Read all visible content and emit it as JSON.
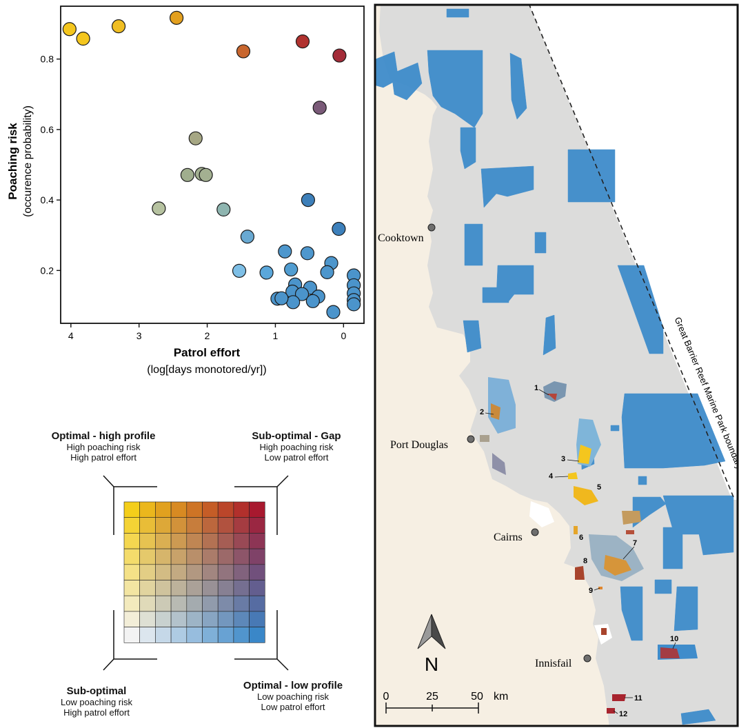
{
  "chart_data": {
    "type": "scatter",
    "xlabel": "Patrol effort",
    "xlabel_sub": "(log[days monotored/yr])",
    "ylabel": "Poaching risk",
    "ylabel_sub": "(occurence probability)",
    "x_reversed": true,
    "xlim": [
      4.15,
      -0.3
    ],
    "ylim": [
      0.05,
      0.95
    ],
    "xticks": [
      4,
      3,
      2,
      1,
      0
    ],
    "yticks": [
      0.2,
      0.4,
      0.6,
      0.8
    ],
    "grid": false,
    "points": [
      {
        "x": 4.02,
        "y": 0.885,
        "color": "#F4C61E"
      },
      {
        "x": 3.82,
        "y": 0.858,
        "color": "#F4C61E"
      },
      {
        "x": 3.3,
        "y": 0.893,
        "color": "#F0BE22"
      },
      {
        "x": 2.45,
        "y": 0.917,
        "color": "#E3A01F"
      },
      {
        "x": 1.47,
        "y": 0.822,
        "color": "#C8662E"
      },
      {
        "x": 0.6,
        "y": 0.85,
        "color": "#B0322F"
      },
      {
        "x": 0.06,
        "y": 0.81,
        "color": "#A32B38"
      },
      {
        "x": 0.35,
        "y": 0.662,
        "color": "#7A5A78"
      },
      {
        "x": 2.17,
        "y": 0.575,
        "color": "#A6A784"
      },
      {
        "x": 2.29,
        "y": 0.471,
        "color": "#A0AE8E"
      },
      {
        "x": 2.08,
        "y": 0.474,
        "color": "#A3B091"
      },
      {
        "x": 2.02,
        "y": 0.471,
        "color": "#A3B091"
      },
      {
        "x": 2.71,
        "y": 0.376,
        "color": "#B6C2A0"
      },
      {
        "x": 1.76,
        "y": 0.373,
        "color": "#8EB5B0"
      },
      {
        "x": 0.52,
        "y": 0.4,
        "color": "#3D7FB9"
      },
      {
        "x": 0.07,
        "y": 0.318,
        "color": "#3D80BB"
      },
      {
        "x": 1.41,
        "y": 0.296,
        "color": "#69A9D2"
      },
      {
        "x": 0.86,
        "y": 0.254,
        "color": "#4E97CD"
      },
      {
        "x": 0.53,
        "y": 0.249,
        "color": "#4E97CD"
      },
      {
        "x": 1.53,
        "y": 0.199,
        "color": "#7EBFE6"
      },
      {
        "x": 1.13,
        "y": 0.194,
        "color": "#5BA7DA"
      },
      {
        "x": 0.77,
        "y": 0.203,
        "color": "#519DD1"
      },
      {
        "x": 0.18,
        "y": 0.221,
        "color": "#4D96CC"
      },
      {
        "x": 0.24,
        "y": 0.195,
        "color": "#4D96CC"
      },
      {
        "x": 0.49,
        "y": 0.151,
        "color": "#4B94CB"
      },
      {
        "x": 0.71,
        "y": 0.16,
        "color": "#4B94CB"
      },
      {
        "x": 0.75,
        "y": 0.14,
        "color": "#4B94CB"
      },
      {
        "x": 0.61,
        "y": 0.133,
        "color": "#4B94CB"
      },
      {
        "x": 0.37,
        "y": 0.126,
        "color": "#4B94CB"
      },
      {
        "x": 0.45,
        "y": 0.113,
        "color": "#4B94CB"
      },
      {
        "x": 0.74,
        "y": 0.11,
        "color": "#4B94CB"
      },
      {
        "x": 0.97,
        "y": 0.12,
        "color": "#4B94CB"
      },
      {
        "x": 0.91,
        "y": 0.121,
        "color": "#4B94CB"
      },
      {
        "x": 0.15,
        "y": 0.082,
        "color": "#4B94CB"
      },
      {
        "x": -0.15,
        "y": 0.186,
        "color": "#4B94CB"
      },
      {
        "x": -0.15,
        "y": 0.158,
        "color": "#4B94CB"
      },
      {
        "x": -0.15,
        "y": 0.135,
        "color": "#4B94CB"
      },
      {
        "x": -0.15,
        "y": 0.116,
        "color": "#4B94CB"
      },
      {
        "x": -0.15,
        "y": 0.104,
        "color": "#4B94CB"
      }
    ]
  },
  "legend": {
    "corner_colors": {
      "top_left": "#F4CE1A",
      "top_right": "#A8192F",
      "bottom_left": "#F3F3F3",
      "bottom_right": "#3A87C8"
    },
    "grid_size": 9,
    "top_left": {
      "title": "Optimal -  high profile",
      "line1": "High poaching risk",
      "line2": "High patrol effort"
    },
    "top_right": {
      "title": "Sub-optimal - Gap",
      "line1": "High poaching risk",
      "line2": "Low patrol effort"
    },
    "bottom_left": {
      "title": "Sub-optimal",
      "line1": "Low poaching risk",
      "line2": "High patrol effort"
    },
    "bottom_right": {
      "title": "Optimal -  low profile",
      "line1": "Low poaching risk",
      "line2": "Low patrol effort"
    }
  },
  "map": {
    "colors": {
      "land": "#F6EFE3",
      "sea": "#DCDCDB",
      "blue": "#3F8CCB",
      "orange": "#E0862E",
      "yellow": "#F4C61E",
      "red": "#A83A34"
    },
    "towns": [
      "Cooktown",
      "Port Douglas",
      "Cairns",
      "Innisfail"
    ],
    "site_labels": [
      "1",
      "2",
      "3",
      "4",
      "5",
      "6",
      "7",
      "8",
      "9",
      "10",
      "11",
      "12"
    ],
    "boundary_label": "Great Barrier Reef Marine Park boundary",
    "north_label": "N",
    "scale": {
      "ticks": [
        "0",
        "25",
        "50"
      ],
      "unit": "km"
    }
  }
}
